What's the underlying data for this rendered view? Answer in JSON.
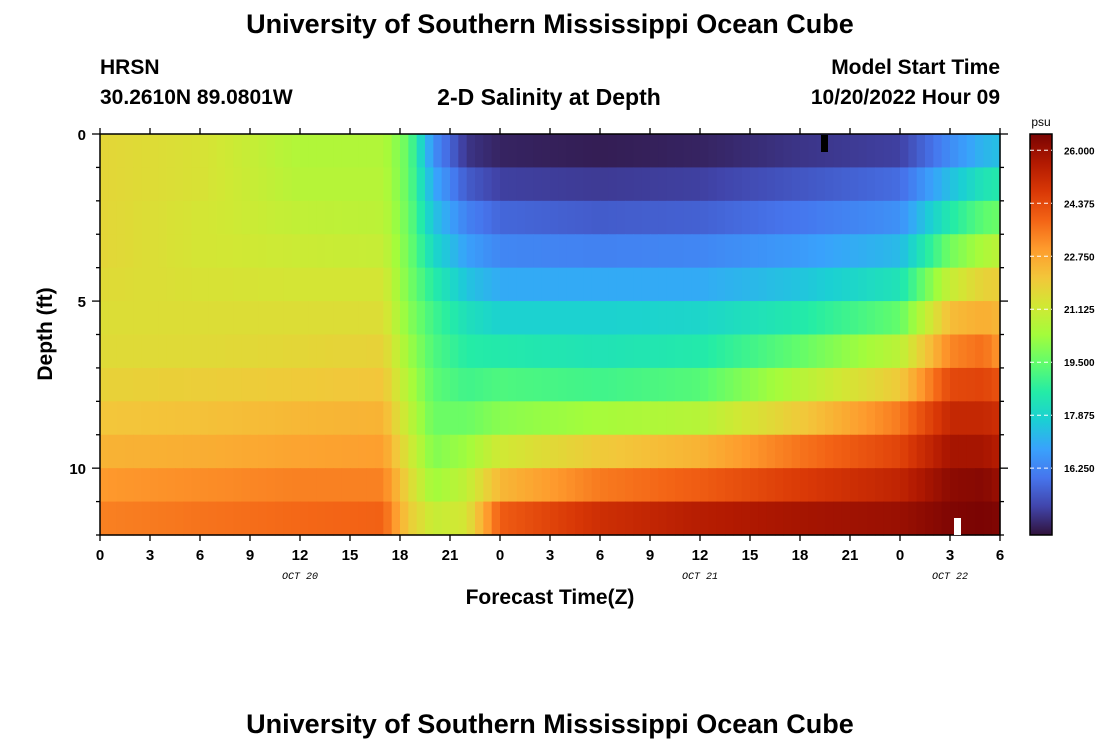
{
  "header": {
    "title": "University of Southern Mississippi Ocean Cube",
    "station": "HRSN",
    "coords": "30.2610N  89.0801W",
    "plot_title": "2-D Salinity at Depth",
    "model_label": "Model Start Time",
    "model_time": "10/20/2022 Hour 09"
  },
  "footer": {
    "title": "University of Southern Mississippi Ocean Cube"
  },
  "colors": {
    "colormap": [
      "#30123b",
      "#4145ab",
      "#4675ed",
      "#39a2fc",
      "#1bcfd4",
      "#24eca6",
      "#61fc6c",
      "#a4fc3b",
      "#d1e834",
      "#f3c63a",
      "#fe9b2d",
      "#f36315",
      "#d93806",
      "#b11901",
      "#7a0403"
    ]
  },
  "chart_data": {
    "type": "heatmap",
    "title": "2-D Salinity at Depth",
    "xlabel": "Forecast Time(Z)",
    "ylabel": "Depth (ft)",
    "x_ticks": [
      "0",
      "3",
      "6",
      "9",
      "12",
      "15",
      "18",
      "21",
      "0",
      "3",
      "6",
      "9",
      "12",
      "15",
      "18",
      "21",
      "0",
      "3",
      "6"
    ],
    "x_range_hours": [
      0,
      54
    ],
    "date_labels": [
      {
        "text": "OCT 20",
        "hour": 12
      },
      {
        "text": "OCT 21",
        "hour": 36
      },
      {
        "text": "OCT 22",
        "hour": 51
      }
    ],
    "y_ticks": [
      "0",
      "5",
      "10"
    ],
    "y_range_ft": [
      0,
      12
    ],
    "layer_count": 12,
    "colorbar": {
      "unit": "psu",
      "min": 14.2,
      "max": 26.5,
      "ticks": [
        "26.000",
        "24.375",
        "22.750",
        "21.125",
        "19.500",
        "17.875",
        "16.250"
      ]
    },
    "layer_depths_ft": [
      0.5,
      1.5,
      2.5,
      3.5,
      4.5,
      5.5,
      6.5,
      7.5,
      8.5,
      9.5,
      10.5,
      11.5
    ],
    "profile_hours": [
      0,
      6,
      12,
      17,
      18.5,
      20,
      22,
      24,
      30,
      36,
      42,
      48,
      51,
      53,
      54
    ],
    "profiles_psu": [
      [
        21.7,
        21.7,
        21.7,
        21.7,
        21.6,
        21.5,
        21.6,
        21.8,
        22.1,
        22.5,
        23.0,
        23.4
      ],
      [
        21.4,
        21.4,
        21.3,
        21.3,
        21.4,
        21.5,
        21.6,
        21.9,
        22.2,
        22.6,
        23.2,
        23.6
      ],
      [
        20.6,
        20.7,
        20.9,
        21.1,
        21.3,
        21.5,
        21.7,
        22.0,
        22.4,
        22.8,
        23.4,
        23.8
      ],
      [
        20.6,
        20.7,
        20.8,
        21.0,
        21.3,
        21.5,
        21.8,
        22.1,
        22.5,
        22.9,
        23.4,
        23.9
      ],
      [
        19.5,
        19.5,
        19.6,
        19.7,
        19.8,
        20.0,
        20.3,
        20.6,
        20.9,
        21.3,
        21.7,
        22.0
      ],
      [
        16.5,
        17.0,
        17.5,
        18.0,
        18.6,
        19.0,
        19.2,
        19.4,
        19.6,
        19.9,
        20.3,
        21.0
      ],
      [
        14.8,
        15.5,
        16.2,
        16.8,
        17.5,
        18.2,
        18.6,
        19.0,
        19.6,
        20.3,
        20.9,
        21.3
      ],
      [
        14.5,
        15.0,
        15.7,
        16.3,
        17.0,
        17.8,
        18.5,
        19.2,
        20.0,
        21.2,
        22.4,
        24.0
      ],
      [
        14.4,
        14.9,
        15.5,
        16.2,
        17.0,
        17.8,
        18.3,
        19.0,
        20.4,
        22.0,
        23.5,
        25.0
      ],
      [
        14.5,
        15.0,
        15.6,
        16.3,
        17.0,
        17.9,
        18.5,
        19.3,
        20.7,
        22.5,
        24.0,
        25.5
      ],
      [
        14.8,
        15.4,
        16.0,
        16.7,
        17.5,
        18.5,
        19.5,
        20.7,
        22.0,
        23.6,
        24.7,
        25.8
      ],
      [
        15.0,
        15.8,
        16.5,
        17.3,
        18.3,
        19.5,
        20.8,
        22.0,
        23.5,
        24.5,
        25.3,
        26.0
      ],
      [
        16.4,
        17.4,
        18.5,
        19.7,
        21.0,
        22.3,
        23.3,
        24.4,
        25.2,
        25.8,
        26.2,
        26.4
      ],
      [
        17.2,
        18.3,
        19.4,
        20.5,
        21.8,
        22.6,
        23.7,
        24.5,
        25.2,
        25.8,
        26.3,
        26.5
      ],
      [
        17.4,
        18.5,
        19.6,
        20.8,
        21.9,
        22.4,
        23.0,
        24.2,
        25.0,
        25.5,
        26.0,
        26.4
      ]
    ]
  }
}
